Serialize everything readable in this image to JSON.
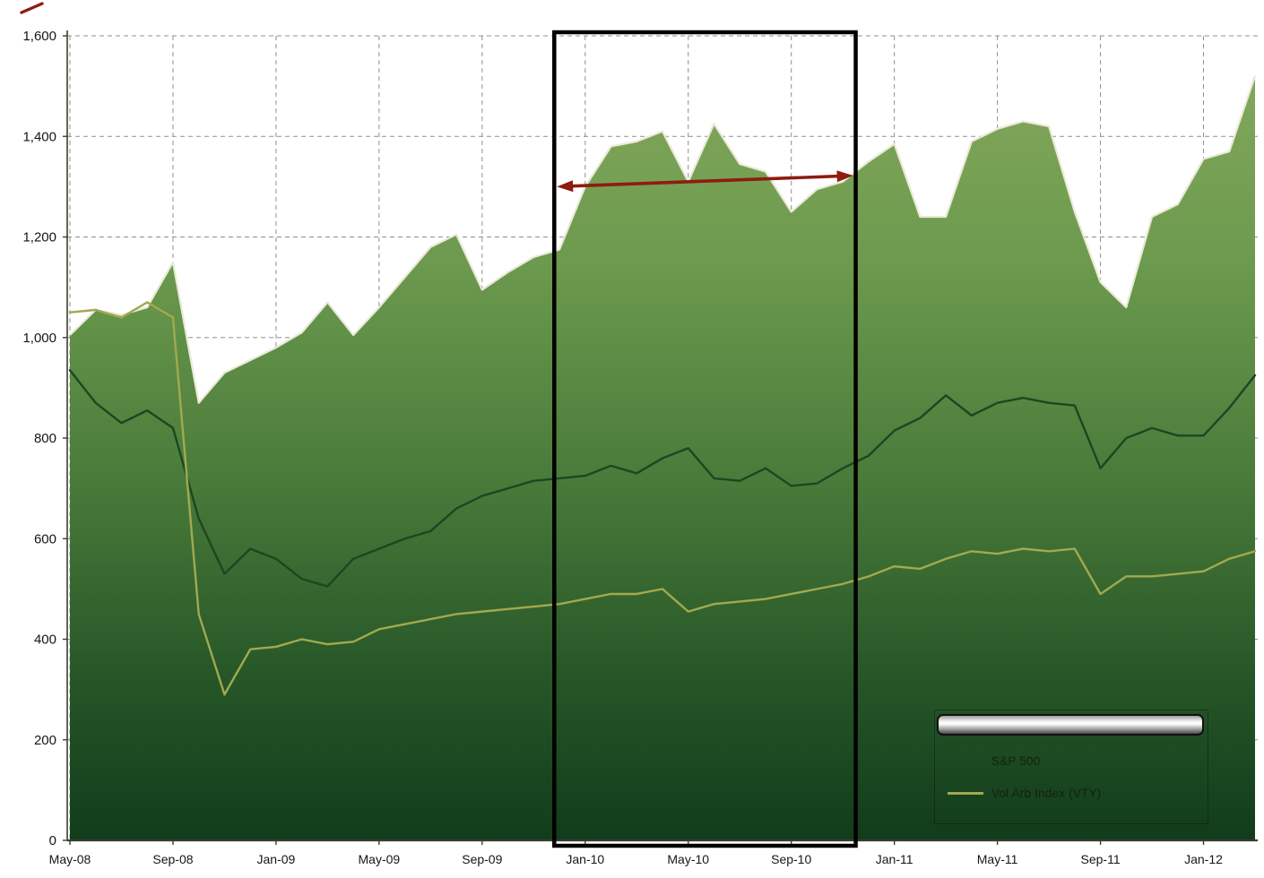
{
  "chart_data": {
    "type": "area",
    "title": "",
    "x_labels": [
      "May-08",
      "Jun-08",
      "Jul-08",
      "Aug-08",
      "Sep-08",
      "Oct-08",
      "Nov-08",
      "Dec-08",
      "Jan-09",
      "Feb-09",
      "Mar-09",
      "Apr-09",
      "May-09",
      "Jun-09",
      "Jul-09",
      "Aug-09",
      "Sep-09",
      "Oct-09",
      "Nov-09",
      "Dec-09",
      "Jan-10",
      "Feb-10",
      "Mar-10",
      "Apr-10",
      "May-10",
      "Jun-10",
      "Jul-10",
      "Aug-10",
      "Sep-10",
      "Oct-10",
      "Nov-10",
      "Dec-10",
      "Jan-11",
      "Feb-11",
      "Mar-11",
      "Apr-11",
      "May-11",
      "Jun-11",
      "Jul-11",
      "Aug-11",
      "Sep-11",
      "Oct-11",
      "Nov-11",
      "Dec-11",
      "Jan-12",
      "Feb-12",
      "Mar-12"
    ],
    "x_tick_labels": [
      "May-08",
      "Sep-08",
      "Jan-09",
      "May-09",
      "Sep-09",
      "Jan-10",
      "May-10",
      "Sep-10",
      "Jan-11",
      "May-11",
      "Sep-11",
      "Jan-12"
    ],
    "ylim": [
      0,
      1600
    ],
    "y_ticks": [
      0,
      200,
      400,
      600,
      800,
      1000,
      1200,
      1400,
      1600
    ],
    "y_tick_labels": [
      "0",
      "200",
      "400",
      "600",
      "800",
      "1,000",
      "1,200",
      "1,400",
      "1,600"
    ],
    "grid": "dashed",
    "grid_color": "#8f8f8f",
    "series": [
      {
        "name": "",
        "role": "area",
        "fill_top": "#87aa5e",
        "fill_mid": "#4a7b3a",
        "fill_bottom": "#113c1b",
        "edge_color": "#ebe9d8",
        "values": [
          1005,
          1055,
          1045,
          1060,
          1150,
          870,
          930,
          955,
          980,
          1010,
          1070,
          1005,
          1060,
          1120,
          1180,
          1205,
          1095,
          1130,
          1160,
          1175,
          1300,
          1380,
          1390,
          1410,
          1310,
          1425,
          1345,
          1330,
          1250,
          1295,
          1310,
          1350,
          1385,
          1240,
          1240,
          1390,
          1415,
          1430,
          1420,
          1250,
          1110,
          1060,
          1240,
          1265,
          1355,
          1370,
          1520
        ]
      },
      {
        "name": "S&P 500",
        "role": "line",
        "color": "#1c4722",
        "values": [
          935,
          870,
          830,
          855,
          820,
          640,
          530,
          580,
          560,
          520,
          505,
          560,
          580,
          600,
          615,
          660,
          685,
          700,
          715,
          720,
          725,
          745,
          730,
          760,
          780,
          720,
          715,
          740,
          705,
          710,
          740,
          765,
          815,
          840,
          885,
          845,
          870,
          880,
          870,
          865,
          740,
          800,
          820,
          805,
          805,
          860,
          925
        ]
      },
      {
        "name": "Vol Arb Index (VTY)",
        "role": "line",
        "color": "#a2a94f",
        "values": [
          1050,
          1055,
          1040,
          1070,
          1040,
          450,
          290,
          380,
          385,
          400,
          390,
          395,
          420,
          430,
          440,
          450,
          455,
          460,
          465,
          470,
          480,
          490,
          490,
          500,
          455,
          470,
          475,
          480,
          490,
          500,
          510,
          525,
          545,
          540,
          560,
          575,
          570,
          580,
          575,
          580,
          490,
          525,
          525,
          530,
          535,
          560,
          575
        ]
      }
    ],
    "annotations": {
      "highlight_box": {
        "from_label": "Dec-09",
        "to_label": "Nov-10",
        "from_index": 18.8,
        "to_index": 30.5,
        "color": "#000000",
        "stroke_width": 4.5
      },
      "double_arrow": {
        "from_index": 18.9,
        "from_value": 1300,
        "to_index": 30.4,
        "to_value": 1322,
        "color": "#8e1c10"
      },
      "corner_mark": {
        "color": "#8e1c10"
      }
    },
    "legend": {
      "position": "bottom-right",
      "items": [
        {
          "label": "S&P 500",
          "color": "#1c4722"
        },
        {
          "label": "Vol Arb Index (VTY)",
          "color": "#a2a94f"
        }
      ]
    }
  }
}
